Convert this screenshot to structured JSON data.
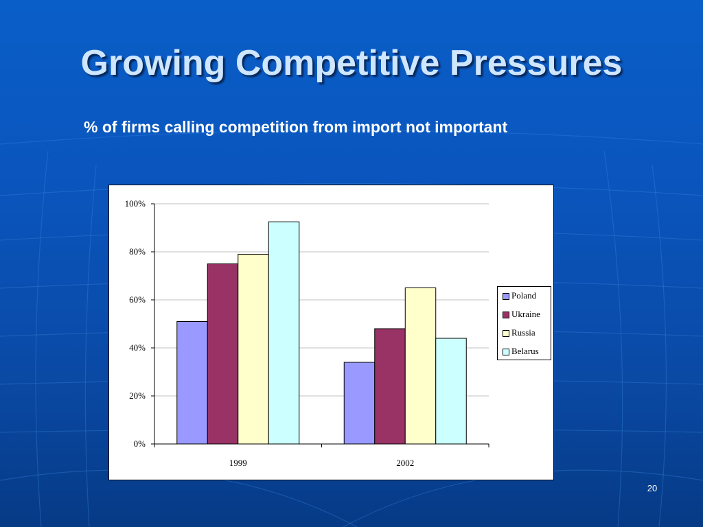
{
  "slide": {
    "title": "Growing Competitive Pressures",
    "subtitle": "% of firms calling competition from import not important",
    "page_number": "20"
  },
  "colors": {
    "background": "#0a55bd",
    "title": "#cfe6ff"
  },
  "chart_data": {
    "type": "bar",
    "categories": [
      "1999",
      "2002"
    ],
    "series": [
      {
        "name": "Poland",
        "values": [
          51,
          34
        ],
        "color": "#9999ff"
      },
      {
        "name": "Ukraine",
        "values": [
          75,
          48
        ],
        "color": "#993366"
      },
      {
        "name": "Russia",
        "values": [
          79,
          65
        ],
        "color": "#ffffcc"
      },
      {
        "name": "Belarus",
        "values": [
          92.5,
          44
        ],
        "color": "#ccffff"
      }
    ],
    "ylim": [
      0,
      100
    ],
    "yticks": [
      "0%",
      "20%",
      "40%",
      "60%",
      "80%",
      "100%"
    ],
    "ytick_values": [
      0,
      20,
      40,
      60,
      80,
      100
    ],
    "grid": true,
    "legend_position": "right"
  }
}
